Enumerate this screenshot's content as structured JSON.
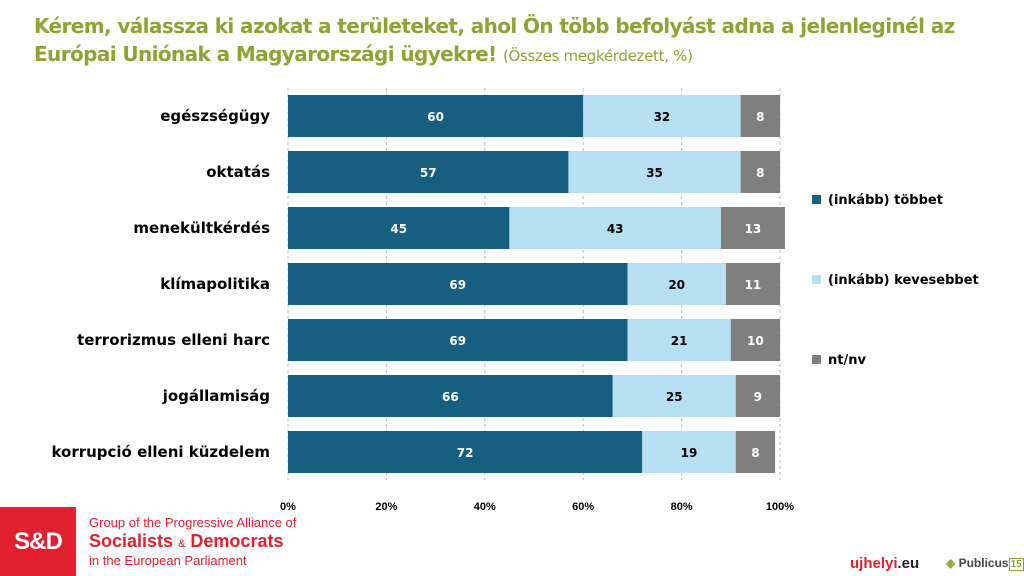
{
  "title": {
    "main": "Kérem, válassza ki azokat a területeket, ahol Ön több befolyást adna a jelenleginél az Európai Uniónak a Magyarországi ügyekre!",
    "subtitle": "(Összes megkérdezett, %)"
  },
  "chart_data": {
    "type": "bar",
    "orientation": "horizontal",
    "stacked": true,
    "categories": [
      "egészségügy",
      "oktatás",
      "menekültkérdés",
      "klímapolitika",
      "terrorizmus elleni harc",
      "jogállamiság",
      "korrupció elleni küzdelem"
    ],
    "series": [
      {
        "name": "(inkább) többet",
        "color": "#175f80",
        "values": [
          60,
          57,
          45,
          69,
          69,
          66,
          72
        ]
      },
      {
        "name": "(inkább) kevesebbet",
        "color": "#b7e0f3",
        "values": [
          32,
          35,
          43,
          20,
          21,
          25,
          19
        ]
      },
      {
        "name": "nt/nv",
        "color": "#7f7f7f",
        "values": [
          8,
          8,
          13,
          11,
          10,
          9,
          8
        ]
      }
    ],
    "xlim": [
      0,
      100
    ],
    "xticks": [
      "0%",
      "20%",
      "40%",
      "60%",
      "80%",
      "100%"
    ],
    "grid": "vertical dashed",
    "legend": "right"
  },
  "footer": {
    "sd_logo": "S&D",
    "sd_line1": "Group of the Progressive Alliance of",
    "sd_line2a": "Socialists",
    "sd_amp": "&",
    "sd_line2b": "Democrats",
    "sd_line3": "in the European Parliament",
    "ujhelyi_a": "ujhelyi",
    "ujhelyi_b": ".eu",
    "publicus": "Publicus",
    "publicus_num": "15"
  }
}
